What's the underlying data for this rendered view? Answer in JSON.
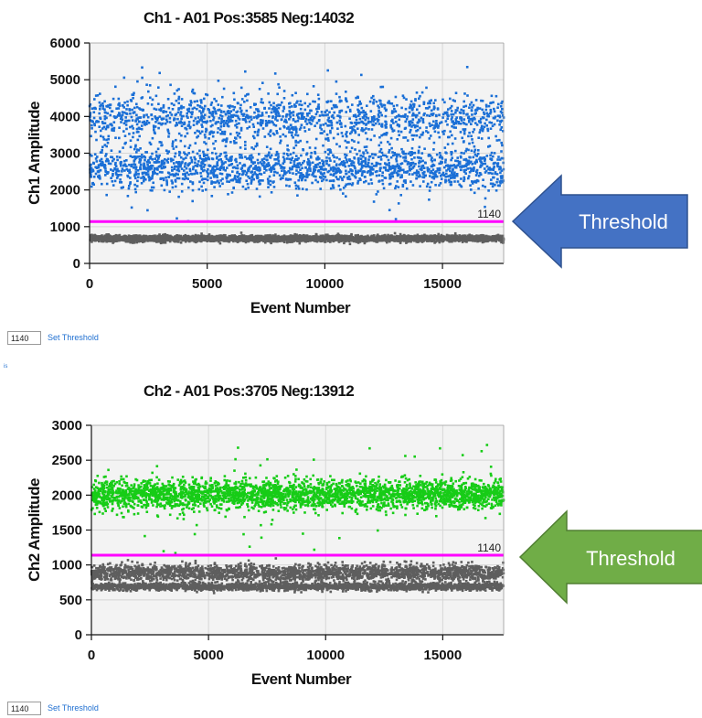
{
  "chart_data": [
    {
      "type": "scatter",
      "title": "Ch1 - A01 Pos:3585 Neg:14032",
      "xlabel": "Event Number",
      "ylabel": "Ch1 Amplitude",
      "xlim": [
        0,
        17600
      ],
      "ylim": [
        0,
        6000
      ],
      "xticks": [
        "0",
        "5000",
        "10000",
        "15000"
      ],
      "yticks": [
        "0",
        "1000",
        "2000",
        "3000",
        "4000",
        "5000",
        "6000"
      ],
      "grid": true,
      "threshold": {
        "value": 1140,
        "label": "1140",
        "color": "#ff00ff"
      },
      "series": [
        {
          "color": "#1a6fd6",
          "clusters": [
            {
              "center": 2600,
              "spread": 290
            },
            {
              "center": 3950,
              "spread": 330
            }
          ],
          "outlier_range": [
            1150,
            5400
          ]
        },
        {
          "color": "#5e5e5e",
          "clusters": [
            {
              "center": 680,
              "spread": 40
            }
          ]
        }
      ]
    },
    {
      "type": "scatter",
      "title": "Ch2 - A01 Pos:3705 Neg:13912",
      "xlabel": "Event Number",
      "ylabel": "Ch2 Amplitude",
      "xlim": [
        0,
        17600
      ],
      "ylim": [
        0,
        3000
      ],
      "xticks": [
        "0",
        "5000",
        "10000",
        "15000"
      ],
      "yticks": [
        "0",
        "500",
        "1000",
        "1500",
        "2000",
        "2500",
        "3000"
      ],
      "grid": true,
      "threshold": {
        "value": 1140,
        "label": "1140",
        "color": "#ff00ff"
      },
      "series": [
        {
          "color": "#17cc17",
          "clusters": [
            {
              "center": 2010,
              "spread": 105
            }
          ],
          "outlier_range": [
            1160,
            2750
          ]
        },
        {
          "color": "#5e5e5e",
          "clusters": [
            {
              "center": 690,
              "spread": 25
            },
            {
              "center": 890,
              "spread": 60
            }
          ]
        }
      ]
    }
  ],
  "threshold_controls": [
    {
      "value": "1140",
      "button": "Set Threshold"
    },
    {
      "value": "1140",
      "button": "Set Threshold"
    }
  ],
  "stray_link": "is",
  "callouts": [
    {
      "label": "Threshold",
      "color": "#4472c4",
      "border": "#2f528f"
    },
    {
      "label": "Threshold",
      "color": "#70ad47",
      "border": "#507e32"
    }
  ]
}
